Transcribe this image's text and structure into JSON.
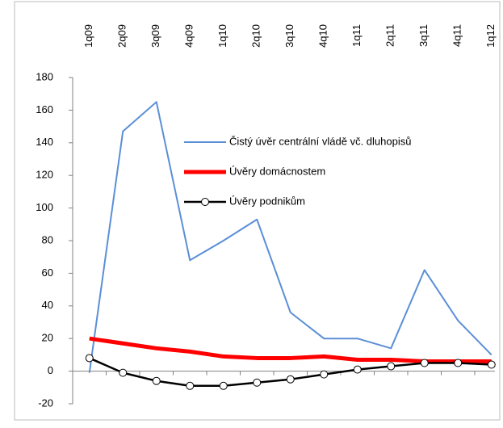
{
  "chart_data": {
    "type": "line",
    "categories": [
      "1q09",
      "2q09",
      "3q09",
      "4q09",
      "1q10",
      "2q10",
      "3q10",
      "4q10",
      "1q11",
      "2q11",
      "3q11",
      "4q11",
      "1q12"
    ],
    "series": [
      {
        "name": "Čistý úvěr centrální vládě vč. dluhopisů",
        "color": "#5b8fd6",
        "width": 2,
        "marker": false,
        "values": [
          -1,
          147,
          165,
          68,
          80,
          93,
          36,
          20,
          20,
          14,
          62,
          31,
          10
        ]
      },
      {
        "name": "Úvěry domácnostem",
        "color": "#ff0000",
        "width": 5,
        "marker": false,
        "values": [
          20,
          17,
          14,
          12,
          9,
          8,
          8,
          9,
          7,
          7,
          6,
          6,
          6
        ]
      },
      {
        "name": "Úvěry podnikům",
        "color": "#000000",
        "width": 2.5,
        "marker": true,
        "values": [
          8,
          -1,
          -6,
          -9,
          -9,
          -7,
          -5,
          -2,
          1,
          3,
          5,
          5,
          4
        ]
      }
    ],
    "ylim": [
      -20,
      180
    ],
    "yticks": [
      -20,
      0,
      20,
      40,
      60,
      80,
      100,
      120,
      140,
      160,
      180
    ],
    "grid": false,
    "legend": "upper right"
  }
}
